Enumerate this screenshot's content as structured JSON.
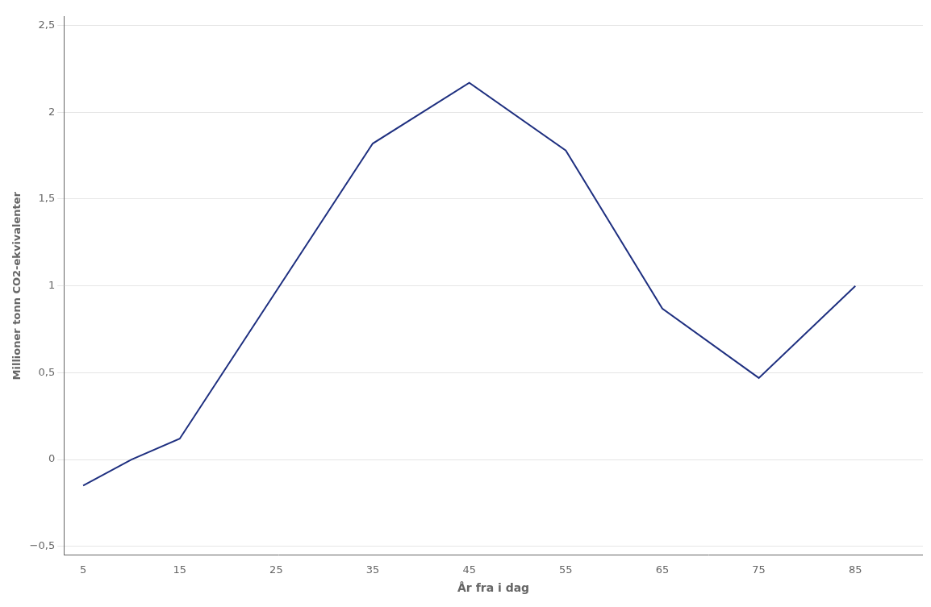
{
  "chart_data": {
    "type": "line",
    "x": [
      5,
      10,
      15,
      35,
      45,
      55,
      65,
      75,
      85
    ],
    "series": [
      {
        "color": "#1F3080",
        "values": [
          -0.15,
          0.0,
          0.12,
          1.82,
          2.17,
          1.78,
          0.87,
          0.47,
          1.0
        ]
      }
    ],
    "xlabel": "År fra i dag",
    "ylabel": "Millioner tonn CO2-ekvivalenter",
    "xlim": [
      3,
      92
    ],
    "xticks": [
      5,
      15,
      25,
      35,
      45,
      55,
      65,
      75,
      85
    ],
    "ylim": [
      -0.55,
      2.55
    ],
    "yticks": [
      {
        "value": -0.5,
        "label": "−0,5"
      },
      0,
      {
        "value": 0.5,
        "label": "0,5"
      },
      1,
      {
        "value": 1.5,
        "label": "1,5"
      },
      2,
      {
        "value": 2.5,
        "label": "2,5"
      }
    ],
    "grid": "y"
  }
}
